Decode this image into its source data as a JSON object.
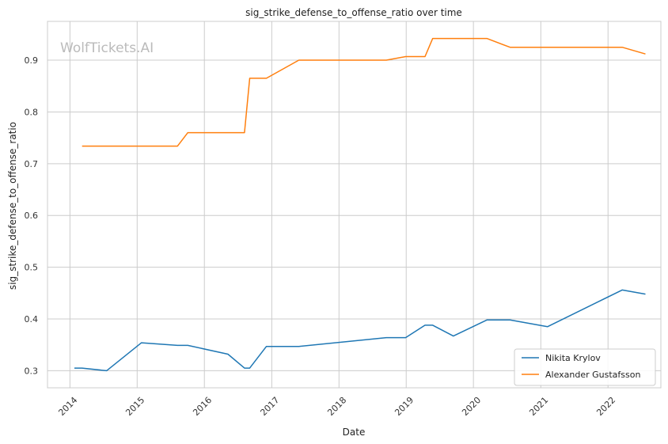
{
  "chart_data": {
    "type": "line",
    "title": "sig_strike_defense_to_offense_ratio over time",
    "xlabel": "Date",
    "ylabel": "sig_strike_defense_to_offense_ratio",
    "watermark": "WolfTickets.AI",
    "x_ticks": [
      "2014",
      "2015",
      "2016",
      "2017",
      "2018",
      "2019",
      "2020",
      "2021",
      "2022"
    ],
    "y_ticks": [
      "0.3",
      "0.4",
      "0.5",
      "0.6",
      "0.7",
      "0.8",
      "0.9"
    ],
    "xlim": [
      "2013-09-01",
      "2022-10-15"
    ],
    "ylim": [
      0.267,
      0.975
    ],
    "grid": true,
    "legend_position": "lower-right",
    "series": [
      {
        "name": "Nikita Krylov",
        "color": "#1f77b4",
        "points": [
          [
            "2014-01-25",
            0.305
          ],
          [
            "2014-03-08",
            0.305
          ],
          [
            "2014-07-19",
            0.3
          ],
          [
            "2015-01-24",
            0.354
          ],
          [
            "2015-08-08",
            0.349
          ],
          [
            "2015-10-03",
            0.349
          ],
          [
            "2016-05-08",
            0.332
          ],
          [
            "2016-08-06",
            0.305
          ],
          [
            "2016-09-03",
            0.305
          ],
          [
            "2016-12-03",
            0.347
          ],
          [
            "2017-05-28",
            0.347
          ],
          [
            "2018-09-15",
            0.364
          ],
          [
            "2018-12-29",
            0.364
          ],
          [
            "2019-04-13",
            0.388
          ],
          [
            "2019-05-25",
            0.388
          ],
          [
            "2019-09-14",
            0.367
          ],
          [
            "2020-03-14",
            0.398
          ],
          [
            "2020-07-18",
            0.398
          ],
          [
            "2021-02-06",
            0.385
          ],
          [
            "2022-03-19",
            0.456
          ],
          [
            "2022-07-23",
            0.448
          ]
        ]
      },
      {
        "name": "Alexander Gustafsson",
        "color": "#ff7f0e",
        "points": [
          [
            "2014-03-08",
            0.734
          ],
          [
            "2015-08-08",
            0.734
          ],
          [
            "2015-10-03",
            0.76
          ],
          [
            "2016-08-06",
            0.76
          ],
          [
            "2016-09-03",
            0.865
          ],
          [
            "2016-12-03",
            0.865
          ],
          [
            "2017-05-28",
            0.9
          ],
          [
            "2018-09-15",
            0.9
          ],
          [
            "2018-12-29",
            0.907
          ],
          [
            "2019-04-13",
            0.907
          ],
          [
            "2019-05-25",
            0.942
          ],
          [
            "2020-03-14",
            0.942
          ],
          [
            "2020-07-18",
            0.925
          ],
          [
            "2022-03-19",
            0.925
          ],
          [
            "2022-07-23",
            0.912
          ]
        ]
      }
    ]
  }
}
